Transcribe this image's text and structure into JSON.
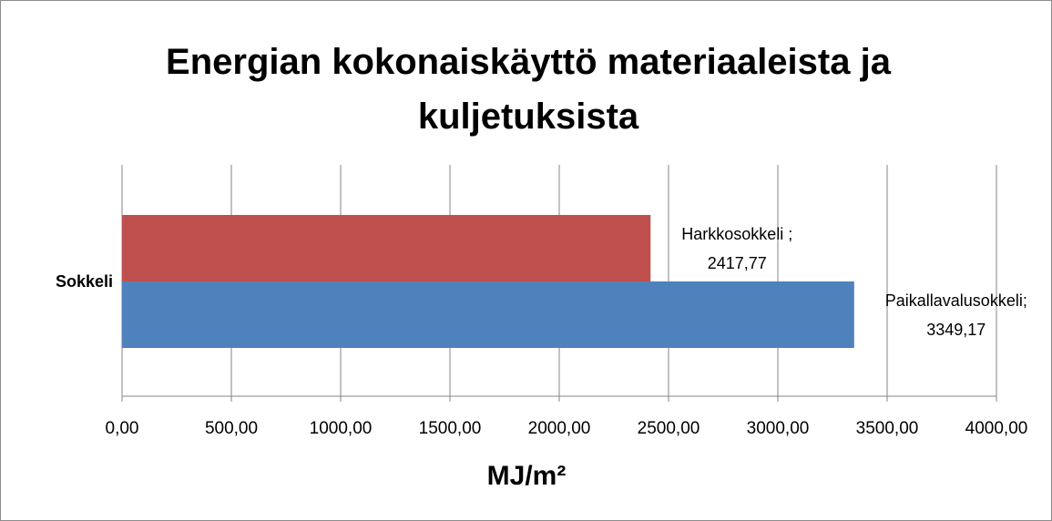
{
  "chart_data": {
    "type": "barh",
    "title": "Energian kokonaiskäyttö materiaaleista ja kuljetuksista",
    "xlabel": "MJ/m²",
    "categories": [
      "Sokkeli"
    ],
    "series": [
      {
        "name": "Harkkosokkeli ;",
        "color": "#c0504d",
        "values": [
          2417.77
        ],
        "value_labels": [
          "2417,77"
        ]
      },
      {
        "name": "Paikallavalusokkeli;",
        "color": "#4f81bd",
        "values": [
          3349.17
        ],
        "value_labels": [
          "3349,17"
        ]
      }
    ],
    "xlim": [
      0,
      4000
    ],
    "xticks": [
      {
        "value": 0,
        "label": "0,00"
      },
      {
        "value": 500,
        "label": "500,00"
      },
      {
        "value": 1000,
        "label": "1000,00"
      },
      {
        "value": 1500,
        "label": "1500,00"
      },
      {
        "value": 2000,
        "label": "2000,00"
      },
      {
        "value": 2500,
        "label": "2500,00"
      },
      {
        "value": 3000,
        "label": "3000,00"
      },
      {
        "value": 3500,
        "label": "3500,00"
      },
      {
        "value": 4000,
        "label": "4000,00"
      }
    ],
    "grid": true
  }
}
